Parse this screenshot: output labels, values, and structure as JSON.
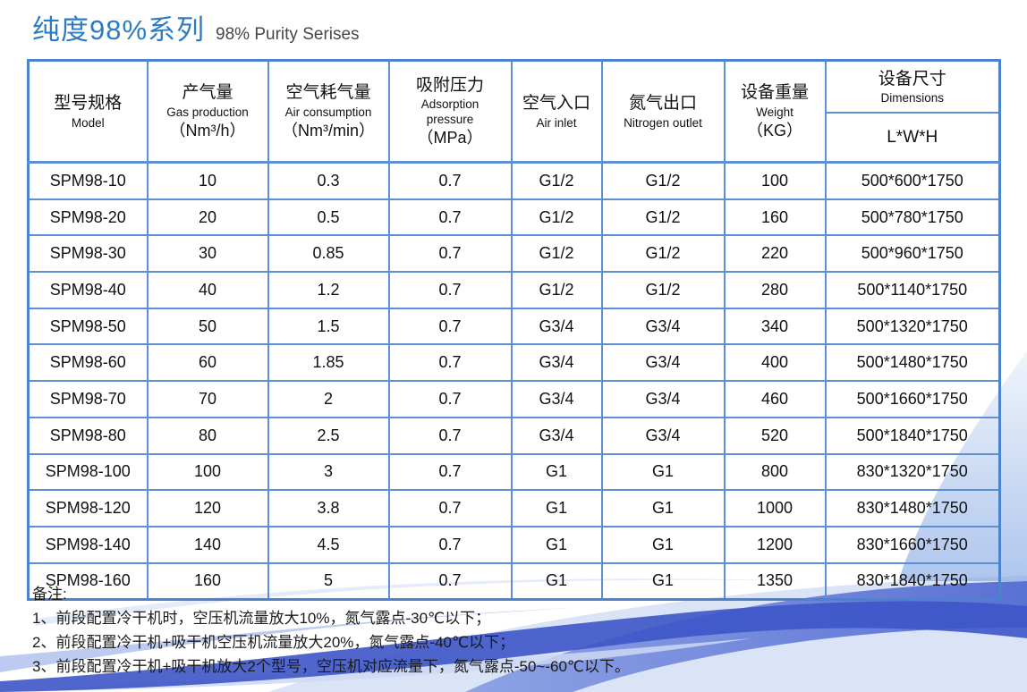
{
  "page": {
    "title_zh": "纯度98%系列",
    "title_en": "98% Purity Serises"
  },
  "colors": {
    "title_blue": "#2b7cc4",
    "table_border_blue": "#5c8fd6",
    "table_outer_border_blue": "#4d82cc",
    "wave_dark_blue": "#3d55c8",
    "wave_medium_blue": "#4f6ad2",
    "wave_light_blue": "#b9c8f0"
  },
  "table": {
    "column_keys": [
      "model",
      "gas-production",
      "air-consumption",
      "adsorption-pressure",
      "air-inlet",
      "nitrogen-outlet",
      "weight",
      "dimensions"
    ],
    "columns": [
      {
        "zh": "型号规格",
        "en": "Model"
      },
      {
        "zh": "产气量",
        "en": "Gas production",
        "unit": "（Nm³/h）"
      },
      {
        "zh": "空气耗气量",
        "en": "Air consumption",
        "unit": "（Nm³/min）"
      },
      {
        "zh": "吸附压力",
        "en": "Adsorption pressure",
        "unit": "（MPa）"
      },
      {
        "zh": "空气入口",
        "en": "Air inlet"
      },
      {
        "zh": "氮气出口",
        "en": "Nitrogen outlet"
      },
      {
        "zh": "设备重量",
        "en": "Weight",
        "unit": "（KG）"
      },
      {
        "zh": "设备尺寸",
        "en": "Dimensions",
        "sub": "L*W*H"
      }
    ],
    "rows": [
      [
        "SPM98-10",
        "10",
        "0.3",
        "0.7",
        "G1/2",
        "G1/2",
        "100",
        "500*600*1750"
      ],
      [
        "SPM98-20",
        "20",
        "0.5",
        "0.7",
        "G1/2",
        "G1/2",
        "160",
        "500*780*1750"
      ],
      [
        "SPM98-30",
        "30",
        "0.85",
        "0.7",
        "G1/2",
        "G1/2",
        "220",
        "500*960*1750"
      ],
      [
        "SPM98-40",
        "40",
        "1.2",
        "0.7",
        "G1/2",
        "G1/2",
        "280",
        "500*1140*1750"
      ],
      [
        "SPM98-50",
        "50",
        "1.5",
        "0.7",
        "G3/4",
        "G3/4",
        "340",
        "500*1320*1750"
      ],
      [
        "SPM98-60",
        "60",
        "1.85",
        "0.7",
        "G3/4",
        "G3/4",
        "400",
        "500*1480*1750"
      ],
      [
        "SPM98-70",
        "70",
        "2",
        "0.7",
        "G3/4",
        "G3/4",
        "460",
        "500*1660*1750"
      ],
      [
        "SPM98-80",
        "80",
        "2.5",
        "0.7",
        "G3/4",
        "G3/4",
        "520",
        "500*1840*1750"
      ],
      [
        "SPM98-100",
        "100",
        "3",
        "0.7",
        "G1",
        "G1",
        "800",
        "830*1320*1750"
      ],
      [
        "SPM98-120",
        "120",
        "3.8",
        "0.7",
        "G1",
        "G1",
        "1000",
        "830*1480*1750"
      ],
      [
        "SPM98-140",
        "140",
        "4.5",
        "0.7",
        "G1",
        "G1",
        "1200",
        "830*1660*1750"
      ],
      [
        "SPM98-160",
        "160",
        "5",
        "0.7",
        "G1",
        "G1",
        "1350",
        "830*1840*1750"
      ]
    ]
  },
  "notes": {
    "label": "备注:",
    "items": [
      "1、前段配置冷干机时，空压机流量放大10%，氮气露点-30℃以下；",
      "2、前段配置冷干机+吸干机空压机流量放大20%，氮气露点-40℃以下；",
      "3、前段配置冷干机+吸干机放大2个型号，空压机对应流量下，氮气露点-50~-60℃以下。"
    ]
  }
}
